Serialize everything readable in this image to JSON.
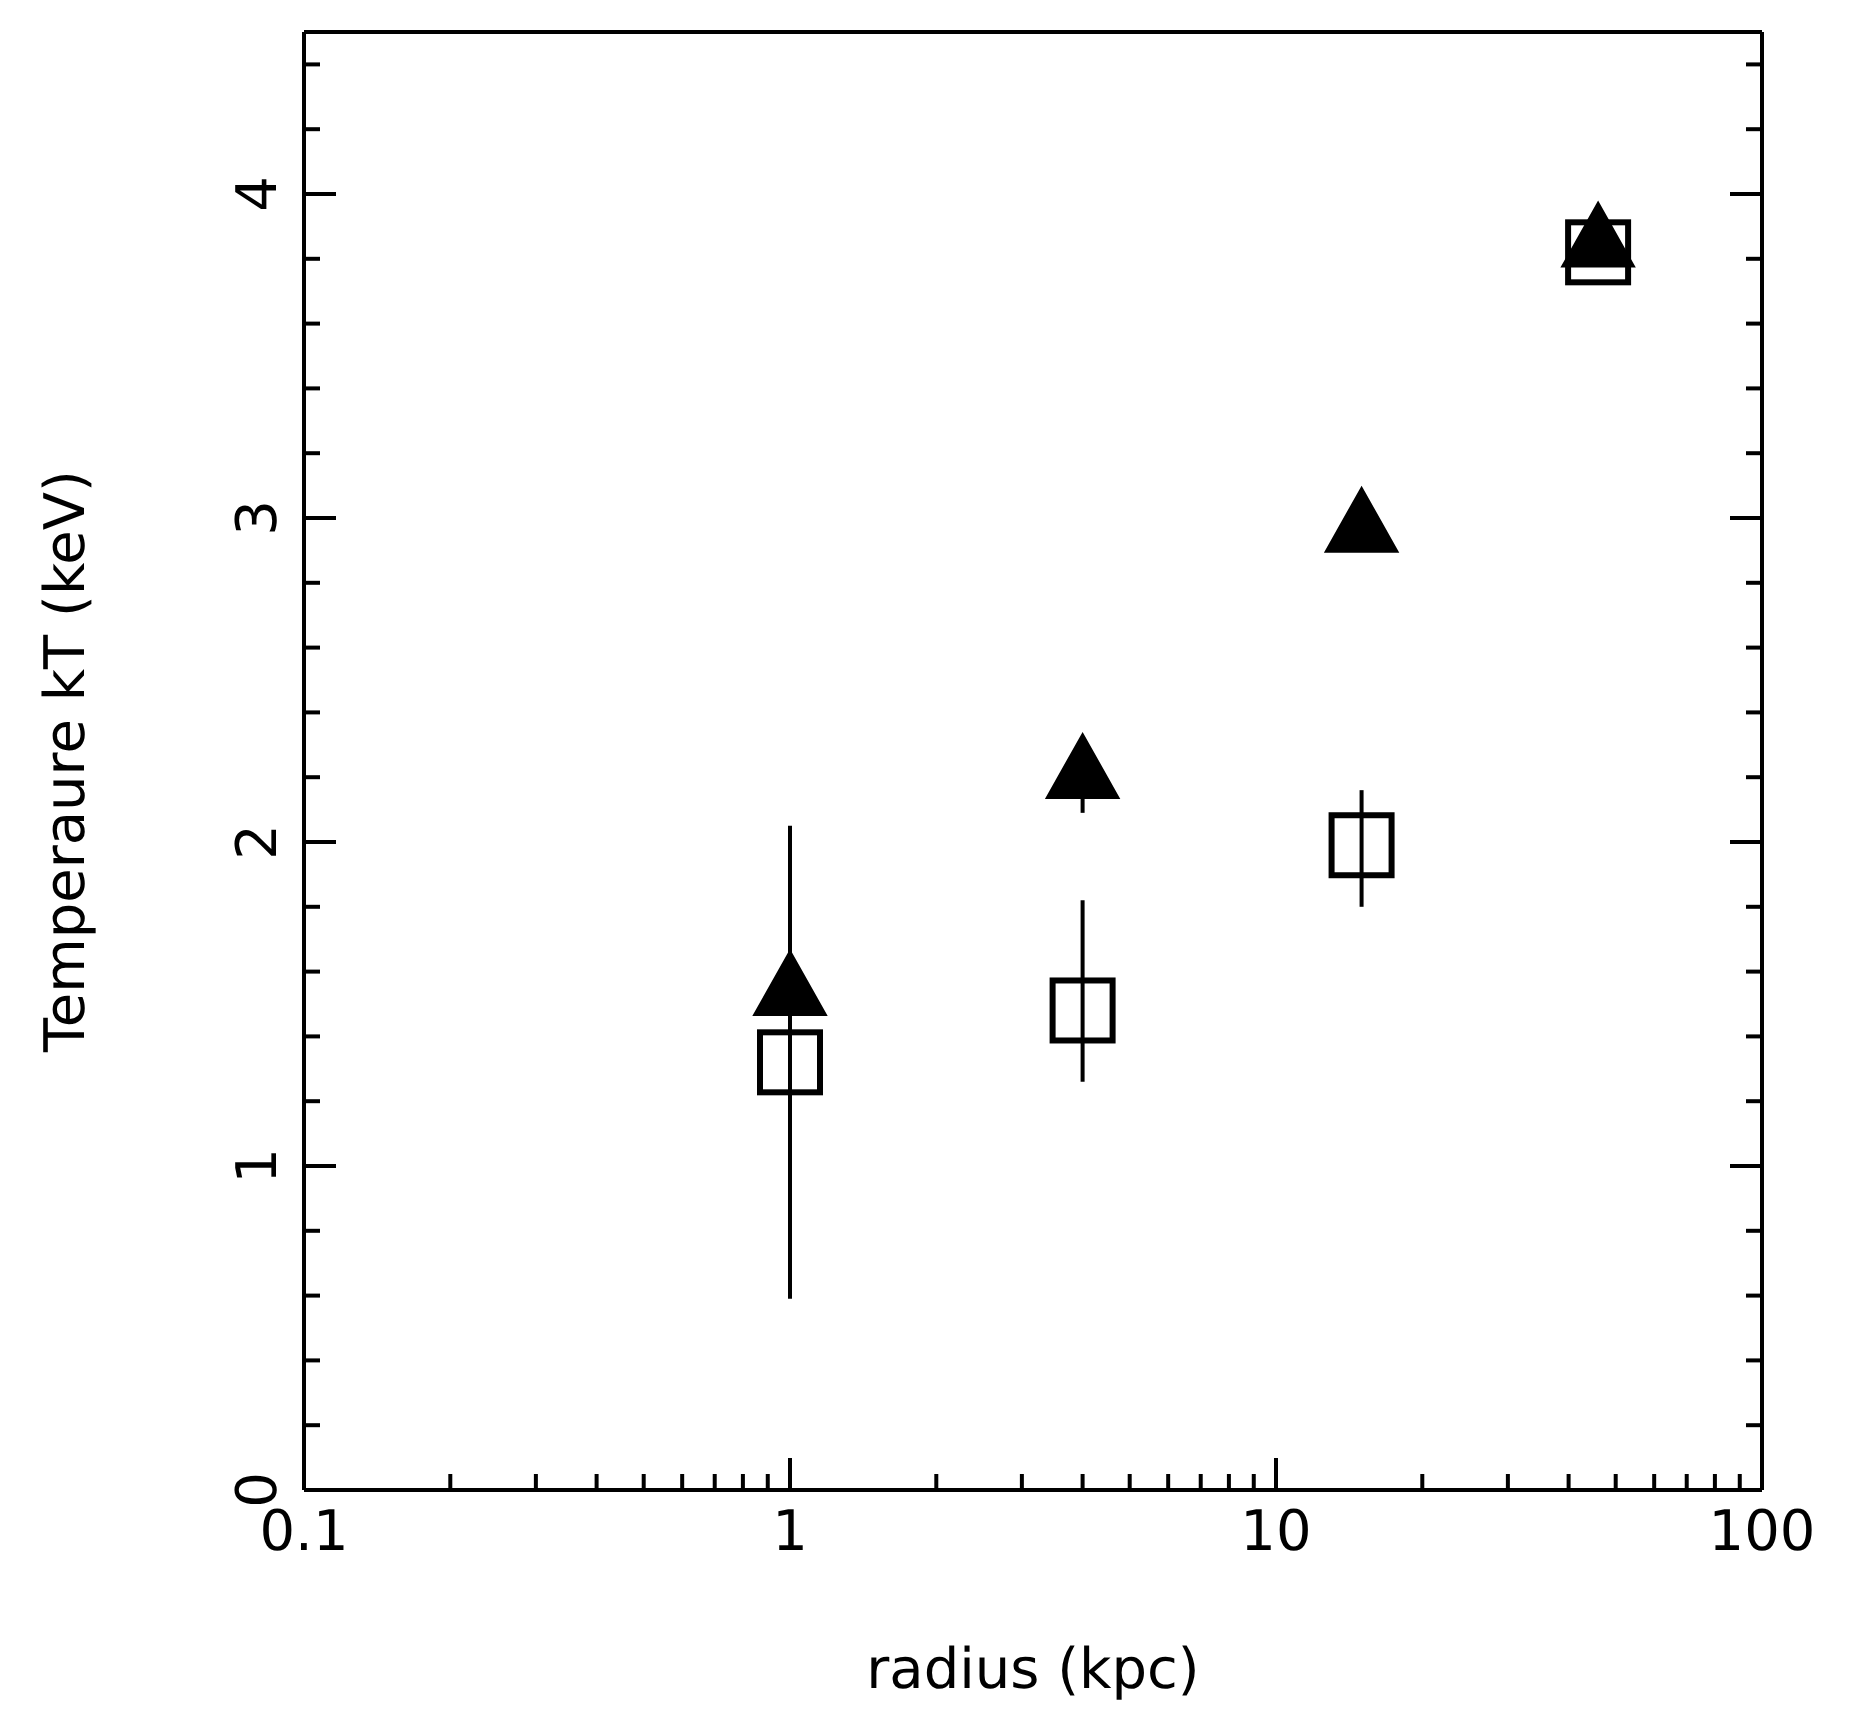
{
  "chart_data": {
    "type": "scatter",
    "xlabel": "radius (kpc)",
    "ylabel": "Temperaure kT (keV)",
    "log": "x",
    "x": [
      1,
      4,
      15,
      46
    ],
    "series": [
      {
        "color": "#000000",
        "marker": "square",
        "values": [
          1.32,
          1.48,
          1.99,
          3.82
        ],
        "errors": [
          [
            0.59,
            2.05
          ],
          [
            1.26,
            1.82
          ],
          [
            1.8,
            2.16
          ],
          null
        ]
      },
      {
        "color": "#000000",
        "marker": "triangle",
        "values": [
          1.54,
          2.21,
          2.97,
          3.85
        ],
        "errors": [
          null,
          [
            2.09,
            2.3
          ],
          null,
          null
        ]
      }
    ],
    "xlim": [
      0.1,
      100
    ],
    "xticks": [
      0.1,
      {
        "value": 0.2,
        "label": null
      },
      {
        "value": 0.3,
        "label": null
      },
      {
        "value": 0.4,
        "label": null
      },
      {
        "value": 0.5,
        "label": null
      },
      {
        "value": 0.6,
        "label": null
      },
      {
        "value": 0.7,
        "label": null
      },
      {
        "value": 0.8,
        "label": null
      },
      {
        "value": 0.9,
        "label": null
      },
      1,
      {
        "value": 2,
        "label": null
      },
      {
        "value": 3,
        "label": null
      },
      {
        "value": 4,
        "label": null
      },
      {
        "value": 5,
        "label": null
      },
      {
        "value": 6,
        "label": null
      },
      {
        "value": 7,
        "label": null
      },
      {
        "value": 8,
        "label": null
      },
      {
        "value": 9,
        "label": null
      },
      10,
      {
        "value": 20,
        "label": null
      },
      {
        "value": 30,
        "label": null
      },
      {
        "value": 40,
        "label": null
      },
      {
        "value": 50,
        "label": null
      },
      {
        "value": 60,
        "label": null
      },
      {
        "value": 70,
        "label": null
      },
      {
        "value": 80,
        "label": null
      },
      {
        "value": 90,
        "label": null
      },
      100
    ],
    "ylim": [
      0,
      4.5
    ],
    "yticks": [
      0,
      {
        "value": 0.2,
        "label": null
      },
      {
        "value": 0.4,
        "label": null
      },
      {
        "value": 0.6,
        "label": null
      },
      {
        "value": 0.8,
        "label": null
      },
      1,
      {
        "value": 1.2,
        "label": null
      },
      {
        "value": 1.4,
        "label": null
      },
      {
        "value": 1.6,
        "label": null
      },
      {
        "value": 1.8,
        "label": null
      },
      2,
      {
        "value": 2.2,
        "label": null
      },
      {
        "value": 2.4,
        "label": null
      },
      {
        "value": 2.6,
        "label": null
      },
      {
        "value": 2.8,
        "label": null
      },
      3,
      {
        "value": 3.2,
        "label": null
      },
      {
        "value": 3.4,
        "label": null
      },
      {
        "value": 3.6,
        "label": null
      },
      {
        "value": 3.8,
        "label": null
      },
      4,
      {
        "value": 4.2,
        "label": null
      },
      {
        "value": 4.4,
        "label": null
      }
    ],
    "grid": false,
    "legend": false
  }
}
